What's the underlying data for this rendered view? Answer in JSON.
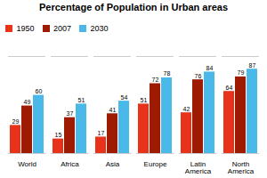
{
  "chart_data": {
    "type": "bar",
    "title": "Percentage of Population in Urban areas",
    "categories": [
      "World",
      "Africa",
      "Asia",
      "Europe",
      "Latin\nAmerica",
      "North\nAmerica"
    ],
    "series": [
      {
        "name": "1950",
        "color": "#e8321a",
        "values": [
          29,
          15,
          17,
          51,
          42,
          64
        ]
      },
      {
        "name": "2007",
        "color": "#9e1a00",
        "values": [
          49,
          37,
          41,
          72,
          76,
          79
        ]
      },
      {
        "name": "2030",
        "color": "#4ab8e8",
        "values": [
          60,
          51,
          54,
          78,
          84,
          87
        ]
      }
    ],
    "ylim": [
      0,
      100
    ],
    "tick_labels": "x",
    "data_labels": true,
    "legend": "upper left",
    "grid": false
  }
}
